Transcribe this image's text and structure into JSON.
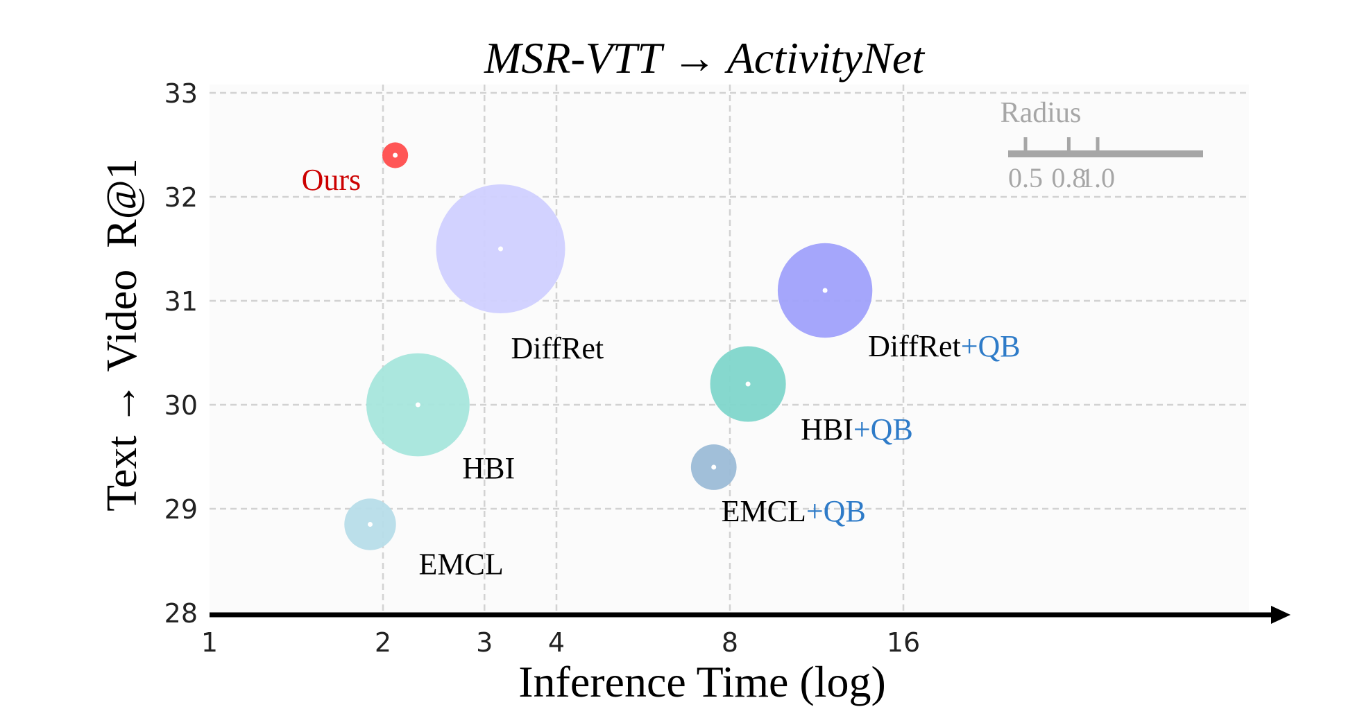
{
  "chart_data": {
    "type": "scatter",
    "title": "MSR-VTT → ActivityNet",
    "xlabel": "Inference Time (log)",
    "ylabel": "Text → Video  R@1",
    "x_scale": "log2",
    "x_ticks": [
      1,
      2,
      3,
      4,
      8,
      16
    ],
    "x_tick_labels": [
      "1",
      "2",
      "3",
      "4",
      "8",
      "16"
    ],
    "xlim": [
      1,
      58
    ],
    "y_ticks": [
      28,
      29,
      30,
      31,
      32,
      33
    ],
    "y_tick_labels": [
      "28",
      "29",
      "30",
      "31",
      "32",
      "33"
    ],
    "ylim": [
      28,
      33
    ],
    "grid": true,
    "points": [
      {
        "name": "Ours",
        "suffix": "",
        "x": 2.1,
        "y": 32.4,
        "radius": 0.3,
        "color": "#ff4d4d",
        "label_color": "#cc0000"
      },
      {
        "name": "DiffRet",
        "suffix": "",
        "x": 3.2,
        "y": 31.5,
        "radius": 1.5,
        "color": "#d0d0ff",
        "label_color": "#000000"
      },
      {
        "name": "HBI",
        "suffix": "",
        "x": 2.3,
        "y": 30.0,
        "radius": 1.2,
        "color": "#a7e6dc",
        "label_color": "#000000"
      },
      {
        "name": "EMCL",
        "suffix": "",
        "x": 1.9,
        "y": 28.85,
        "radius": 0.6,
        "color": "#b7dde9",
        "label_color": "#000000"
      },
      {
        "name": "DiffRet",
        "suffix": "+QB",
        "x": 11.7,
        "y": 31.1,
        "radius": 1.1,
        "color": "#a0a1fb",
        "label_color": "#000000"
      },
      {
        "name": "HBI",
        "suffix": "+QB",
        "x": 8.6,
        "y": 30.2,
        "radius": 0.88,
        "color": "#80d6cb",
        "label_color": "#000000"
      },
      {
        "name": "EMCL",
        "suffix": "+QB",
        "x": 7.5,
        "y": 29.4,
        "radius": 0.53,
        "color": "#9cbcd7",
        "label_color": "#000000"
      }
    ],
    "suffix_color": "#2e7bc8",
    "legend": {
      "title": "Radius",
      "placement": "top-right",
      "values": [
        0.5,
        0.8,
        1.0
      ],
      "labels": [
        "0.5",
        "0.8",
        "1.0"
      ],
      "color": "#a6a6a6"
    }
  }
}
